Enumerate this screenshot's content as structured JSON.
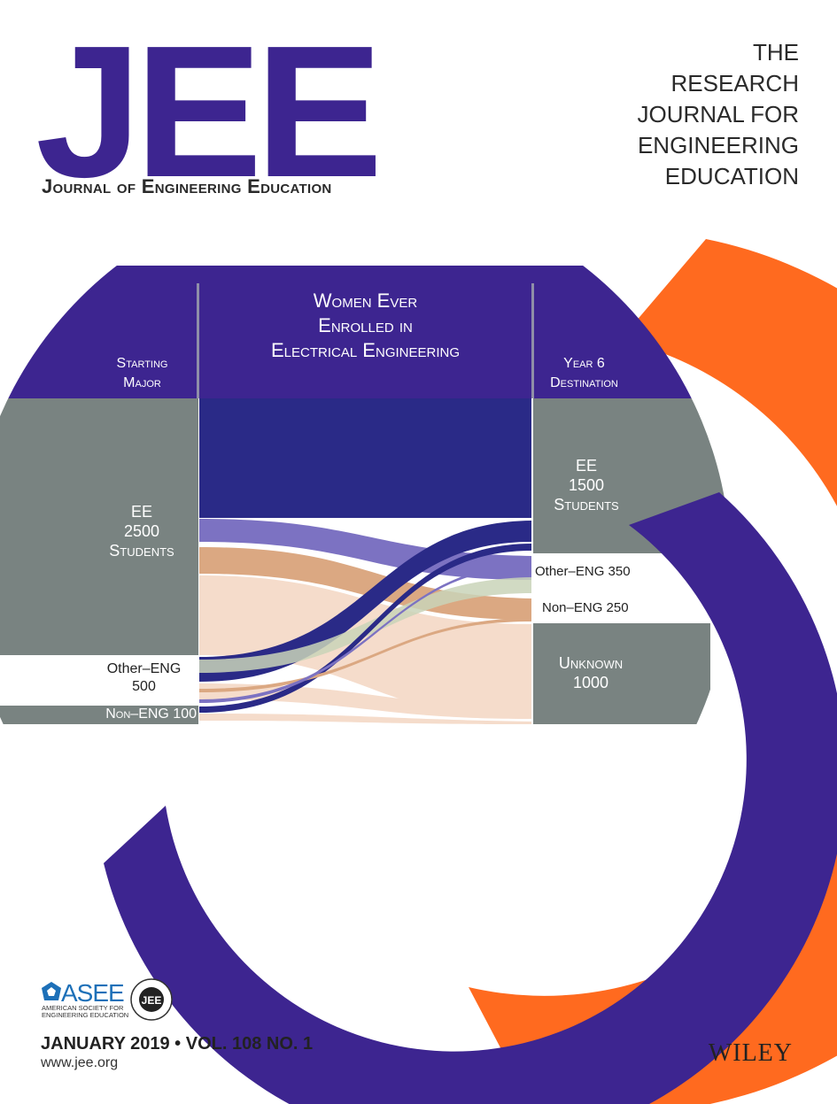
{
  "journal": {
    "abbrev": "JEE",
    "name": "Journal of Engineering Education",
    "tagline": [
      "THE",
      "RESEARCH",
      "JOURNAL FOR",
      "ENGINEERING",
      "EDUCATION"
    ]
  },
  "figure": {
    "title": [
      "Women Ever",
      "Enrolled in",
      "Electrical Engineering"
    ],
    "left_header": [
      "Starting",
      "Major"
    ],
    "right_header": [
      "Year 6",
      "Destination"
    ],
    "start": {
      "ee": [
        "EE",
        "2500",
        "Students"
      ],
      "other_eng": [
        "Other–ENG",
        "500"
      ],
      "non_eng": "Non–ENG 100"
    },
    "end": {
      "ee": [
        "EE",
        "1500",
        "Students"
      ],
      "other_eng": "Other–ENG 350",
      "non_eng": "Non–ENG 250",
      "unknown": [
        "Unknown",
        "1000"
      ]
    }
  },
  "footer": {
    "asee_name": "ASEE",
    "asee_full": "AMERICAN SOCIETY FOR ENGINEERING EDUCATION",
    "seal_text": "JEE",
    "issue": "JANUARY 2019 • VOL. 108 NO. 1",
    "url": "www.jee.org",
    "publisher": "WILEY"
  },
  "colors": {
    "purple": "#3d2590",
    "orange": "#ff6a1f",
    "gray": "#798381",
    "navy": "#2a2a87"
  }
}
